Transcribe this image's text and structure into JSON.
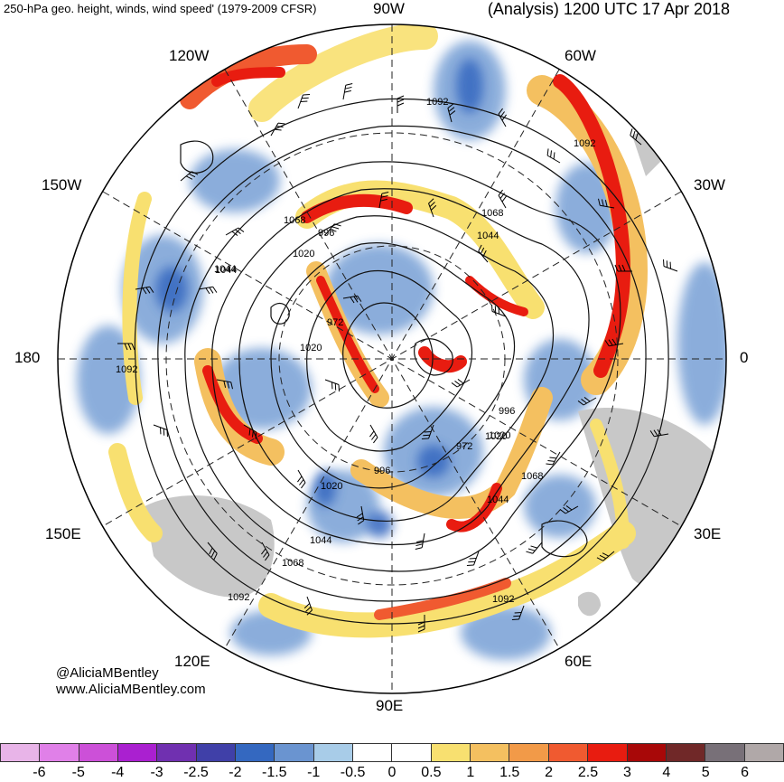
{
  "header": {
    "left_title": "250-hPa geo. height, winds, wind speed' (1979-2009 CFSR)",
    "right_title": "(Analysis) 1200 UTC 17 Apr 2018"
  },
  "longitude_labels": {
    "top": "90W",
    "top_right": "60W",
    "right_upper": "30W",
    "right": "0",
    "lower_right": "30E",
    "bottom_right": "60E",
    "bottom": "90E",
    "bottom_left": "120E",
    "lower_left": "150E",
    "left": "180",
    "left_upper": "150W",
    "top_left": "120W"
  },
  "contour_labels": [
    "1092",
    "1092",
    "1068",
    "1068",
    "1044",
    "1044",
    "996",
    "1020",
    "1020",
    "972",
    "1020",
    "1044",
    "1092",
    "996",
    "972",
    "1020",
    "1068",
    "1044",
    "1020",
    "996",
    "1044",
    "1068",
    "1092",
    "1092"
  ],
  "credits": {
    "handle": "@AliciaMBentley",
    "website": "www.AliciaMBentley.com"
  },
  "colorbar": {
    "colors": [
      "#e8b4e8",
      "#e080e8",
      "#cc50d8",
      "#aa20d0",
      "#7030b0",
      "#4040a8",
      "#3468c0",
      "#6a94d0",
      "#a8cce8",
      "#ffffff",
      "#ffffff",
      "#f8e070",
      "#f4c060",
      "#f29a48",
      "#f05a30",
      "#e81c10",
      "#a80808",
      "#702828",
      "#787078",
      "#b0a8a8"
    ],
    "tick_labels": [
      "-6",
      "-5",
      "-4",
      "-3",
      "-2.5",
      "-2",
      "-1.5",
      "-1",
      "-0.5",
      "0",
      "0.5",
      "1",
      "1.5",
      "2",
      "2.5",
      "3",
      "4",
      "5",
      "6"
    ]
  }
}
